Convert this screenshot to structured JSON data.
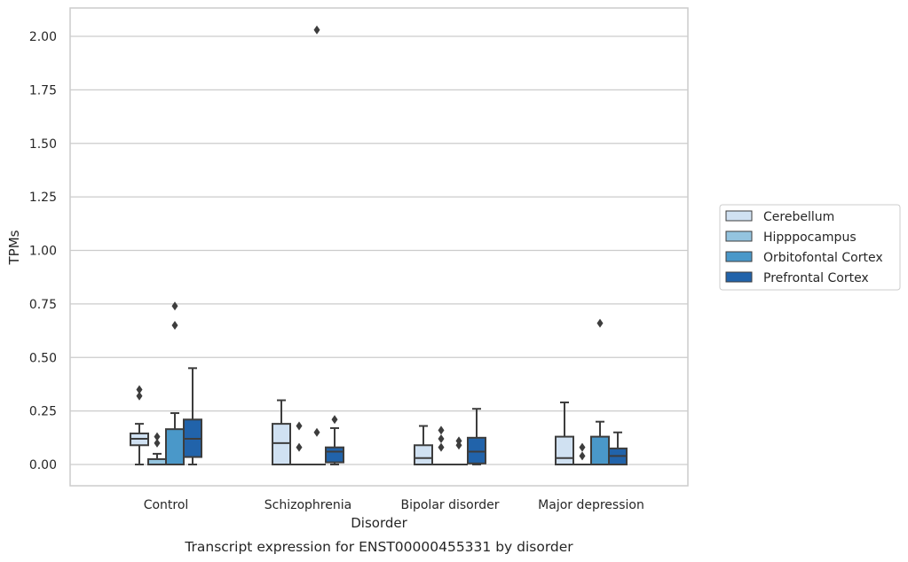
{
  "chart_data": {
    "type": "box",
    "ylabel": "TPMs",
    "xlabel": "Disorder",
    "caption": "Transcript expression for ENST00000455331 by disorder",
    "ylim": [
      -0.1,
      2.13
    ],
    "yticks": [
      0.0,
      0.25,
      0.5,
      0.75,
      1.0,
      1.25,
      1.5,
      1.75,
      2.0
    ],
    "ytick_labels": [
      "0.00",
      "0.25",
      "0.50",
      "0.75",
      "1.00",
      "1.25",
      "1.50",
      "1.75",
      "2.00"
    ],
    "grid": "horizontal",
    "legend_position": "right",
    "categories": [
      "Control",
      "Schizophrenia",
      "Bipolar disorder",
      "Major depression"
    ],
    "series": [
      {
        "name": "Cerebellum",
        "color": "#d0e1f2",
        "boxes": [
          {
            "whislo": 0.0,
            "q1": 0.09,
            "med": 0.12,
            "q3": 0.145,
            "whishi": 0.19,
            "fliers": [
              0.35,
              0.32
            ]
          },
          {
            "whislo": 0.0,
            "q1": 0.0,
            "med": 0.1,
            "q3": 0.19,
            "whishi": 0.3,
            "fliers": []
          },
          {
            "whislo": 0.0,
            "q1": 0.0,
            "med": 0.03,
            "q3": 0.09,
            "whishi": 0.18,
            "fliers": []
          },
          {
            "whislo": 0.0,
            "q1": 0.0,
            "med": 0.03,
            "q3": 0.13,
            "whishi": 0.29,
            "fliers": []
          }
        ]
      },
      {
        "name": "Hipppocampus",
        "color": "#94c4df",
        "boxes": [
          {
            "whislo": 0.0,
            "q1": 0.0,
            "med": 0.0,
            "q3": 0.025,
            "whishi": 0.05,
            "fliers": [
              0.13,
              0.1
            ]
          },
          {
            "whislo": 0.0,
            "q1": 0.0,
            "med": 0.0,
            "q3": 0.0,
            "whishi": 0.0,
            "fliers": [
              0.18,
              0.08
            ]
          },
          {
            "whislo": 0.0,
            "q1": 0.0,
            "med": 0.0,
            "q3": 0.0,
            "whishi": 0.0,
            "fliers": [
              0.16,
              0.12,
              0.08
            ]
          },
          {
            "whislo": 0.0,
            "q1": 0.0,
            "med": 0.0,
            "q3": 0.0,
            "whishi": 0.0,
            "fliers": [
              0.08,
              0.04
            ]
          }
        ]
      },
      {
        "name": "Orbitofontal Cortex",
        "color": "#4a98c9",
        "boxes": [
          {
            "whislo": 0.0,
            "q1": 0.0,
            "med": 0.0,
            "q3": 0.165,
            "whishi": 0.24,
            "fliers": [
              0.74,
              0.65
            ]
          },
          {
            "whislo": 0.0,
            "q1": 0.0,
            "med": 0.0,
            "q3": 0.0,
            "whishi": 0.0,
            "fliers": [
              2.03,
              0.15
            ]
          },
          {
            "whislo": 0.0,
            "q1": 0.0,
            "med": 0.0,
            "q3": 0.0,
            "whishi": 0.0,
            "fliers": [
              0.11,
              0.09
            ]
          },
          {
            "whislo": 0.0,
            "q1": 0.0,
            "med": 0.0,
            "q3": 0.13,
            "whishi": 0.2,
            "fliers": [
              0.66
            ]
          }
        ]
      },
      {
        "name": "Prefrontal Cortex",
        "color": "#2163aa",
        "boxes": [
          {
            "whislo": 0.0,
            "q1": 0.035,
            "med": 0.12,
            "q3": 0.21,
            "whishi": 0.45,
            "fliers": []
          },
          {
            "whislo": 0.0,
            "q1": 0.01,
            "med": 0.06,
            "q3": 0.08,
            "whishi": 0.17,
            "fliers": [
              0.21
            ]
          },
          {
            "whislo": 0.0,
            "q1": 0.005,
            "med": 0.06,
            "q3": 0.125,
            "whishi": 0.26,
            "fliers": []
          },
          {
            "whislo": 0.0,
            "q1": 0.0,
            "med": 0.04,
            "q3": 0.075,
            "whishi": 0.15,
            "fliers": []
          }
        ]
      }
    ]
  }
}
